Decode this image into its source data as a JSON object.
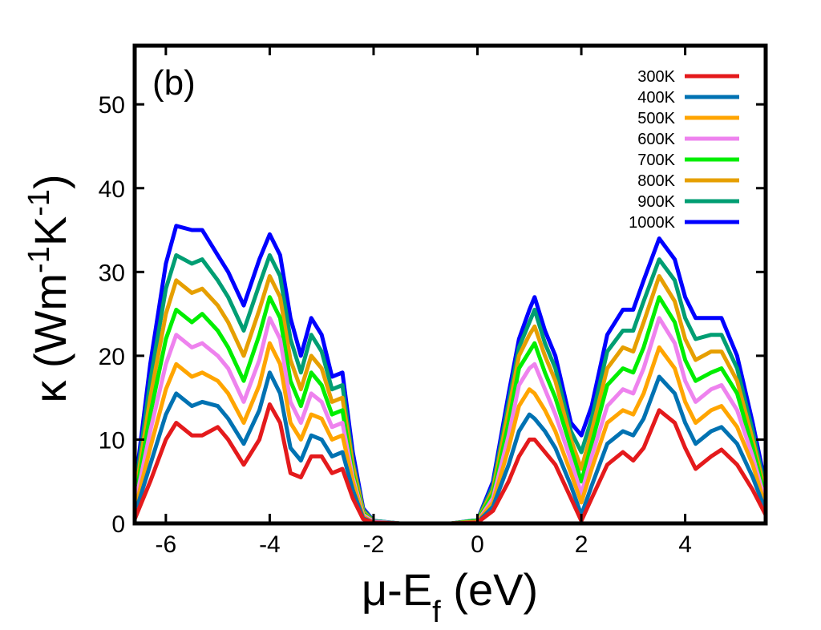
{
  "chart_data": {
    "type": "line",
    "panel_label": "(b)",
    "ylabel": {
      "base": "κ (Wm",
      "exp1": "-1",
      "mid": "K",
      "exp2": "-1",
      "end": ")"
    },
    "xlabel": {
      "base": "μ-E",
      "sub": "f",
      "end": " (eV)"
    },
    "xlim": [
      -6.6,
      5.55
    ],
    "ylim": [
      0,
      57
    ],
    "x_ticks": [
      -6,
      -4,
      -2,
      0,
      2,
      4
    ],
    "x_tick_labels": [
      "-6",
      "-4",
      "-2",
      "0",
      "2",
      "4"
    ],
    "y_ticks": [
      0,
      10,
      20,
      30,
      40,
      50
    ],
    "y_tick_labels": [
      "0",
      "10",
      "20",
      "30",
      "40",
      "50"
    ],
    "legend_position": "top-right",
    "x": [
      -6.6,
      -6.3,
      -6.0,
      -5.8,
      -5.5,
      -5.3,
      -5.0,
      -4.8,
      -4.5,
      -4.2,
      -4.0,
      -3.8,
      -3.6,
      -3.4,
      -3.2,
      -3.0,
      -2.8,
      -2.6,
      -2.4,
      -2.2,
      -2.0,
      -1.5,
      -1.0,
      -0.5,
      0.0,
      0.3,
      0.6,
      0.8,
      1.0,
      1.1,
      1.3,
      1.5,
      1.8,
      2.0,
      2.2,
      2.5,
      2.8,
      3.0,
      3.2,
      3.5,
      3.8,
      4.0,
      4.2,
      4.5,
      4.7,
      5.0,
      5.3,
      5.55
    ],
    "series": [
      {
        "name": "300K",
        "color": "#e41a1c",
        "values": [
          0.5,
          5,
          10,
          12,
          10.5,
          10.5,
          11.5,
          10,
          7,
          10,
          14.2,
          12,
          6,
          5.5,
          8,
          8,
          6,
          6.5,
          3,
          0.5,
          0.1,
          0,
          0,
          0,
          0.1,
          1.5,
          5,
          8,
          10,
          10,
          8.5,
          7,
          3,
          0.3,
          3,
          7,
          8.5,
          7.5,
          9,
          13.5,
          12,
          9,
          6.5,
          8,
          8.8,
          7,
          4,
          1
        ]
      },
      {
        "name": "400K",
        "color": "#0072b2",
        "values": [
          1,
          7,
          13,
          15.5,
          14,
          14.5,
          14,
          12.5,
          9.5,
          13.5,
          18,
          15.5,
          9,
          7.5,
          10.5,
          10,
          8,
          8.5,
          4,
          0.6,
          0.1,
          0,
          0,
          0,
          0.1,
          2,
          7,
          11,
          13,
          12.5,
          11,
          9,
          4.5,
          1,
          4.5,
          9.5,
          11,
          10.5,
          12.5,
          17.5,
          15.5,
          12,
          9.5,
          11,
          11.5,
          9.5,
          5.5,
          1.5
        ]
      },
      {
        "name": "500K",
        "color": "#ffa500",
        "values": [
          1.5,
          9,
          16,
          19,
          17.5,
          18,
          17,
          15.5,
          12,
          16.5,
          21.5,
          19,
          12,
          10,
          13,
          12.5,
          10,
          10.5,
          5,
          0.8,
          0.1,
          0,
          0,
          0,
          0.2,
          2.5,
          9,
          14,
          16,
          15.5,
          13.5,
          11,
          6,
          2.5,
          6.5,
          12,
          13.5,
          13,
          15.5,
          21,
          18.5,
          14.5,
          12,
          13.5,
          14,
          11.5,
          7,
          2
        ]
      },
      {
        "name": "600K",
        "color": "#ee82ee",
        "values": [
          2,
          11,
          19,
          22.5,
          21,
          21.5,
          20,
          18.5,
          14.5,
          19.5,
          24.5,
          22,
          14.5,
          12,
          15.5,
          14.5,
          11.5,
          12,
          5.5,
          1,
          0.2,
          0,
          0,
          0,
          0.2,
          3,
          10.5,
          16.5,
          18.5,
          19,
          16,
          13,
          7.5,
          3.5,
          8,
          14,
          16,
          15.5,
          18.5,
          24.5,
          21.5,
          17,
          14.5,
          16,
          16.5,
          13.5,
          8,
          2.5
        ]
      },
      {
        "name": "700K",
        "color": "#00ee00",
        "values": [
          2.5,
          13,
          22,
          25.5,
          24,
          25,
          23,
          21,
          17,
          22.5,
          27,
          24.5,
          17,
          14,
          18,
          16.5,
          13,
          13.5,
          6,
          1.2,
          0.2,
          0,
          0,
          0,
          0.3,
          3.5,
          12,
          18.5,
          20.5,
          21.5,
          18,
          15,
          9,
          5,
          9.5,
          16.5,
          18.5,
          18,
          21,
          27,
          24,
          19.5,
          17,
          18,
          18.5,
          15.5,
          9,
          3
        ]
      },
      {
        "name": "800K",
        "color": "#e69f00",
        "values": [
          3,
          15,
          25,
          29,
          27.5,
          28,
          26,
          24,
          20,
          25.5,
          29.5,
          27,
          19.5,
          16,
          20,
          18.5,
          14.5,
          15,
          7,
          1.4,
          0.2,
          0,
          0,
          0,
          0.3,
          4,
          13.5,
          20,
          22.5,
          23.5,
          20,
          17,
          10,
          6.5,
          11,
          18.5,
          21,
          20.5,
          24,
          29.5,
          26.5,
          22,
          19.5,
          20.5,
          20.5,
          17,
          10,
          3.5
        ]
      },
      {
        "name": "900K",
        "color": "#009e73",
        "values": [
          3.5,
          17,
          28,
          32,
          31,
          31.5,
          29,
          27,
          23,
          28.5,
          32,
          29.5,
          22,
          18,
          22.5,
          20.5,
          16,
          16.5,
          7.5,
          1.6,
          0.3,
          0,
          0,
          0,
          0.4,
          4.5,
          14.5,
          21,
          24,
          25.5,
          21.5,
          18.5,
          11,
          8.5,
          12.5,
          20.5,
          23,
          23,
          26.5,
          31.5,
          29,
          24.5,
          22,
          22.5,
          22.5,
          18.5,
          11,
          4
        ]
      },
      {
        "name": "1000K",
        "color": "#0000ff",
        "values": [
          4,
          19,
          31,
          35.5,
          35,
          35,
          32,
          30,
          26,
          31.5,
          34.5,
          32,
          24.5,
          20,
          24.5,
          22.5,
          17.5,
          18,
          8.5,
          1.8,
          0.3,
          0,
          0,
          0,
          0.4,
          5,
          15.5,
          22,
          25.5,
          27,
          23,
          20,
          12,
          10.5,
          14,
          22.5,
          25.5,
          25.5,
          29,
          34,
          31.5,
          27,
          24.5,
          24.5,
          24.5,
          20,
          12,
          4.5
        ]
      }
    ]
  }
}
